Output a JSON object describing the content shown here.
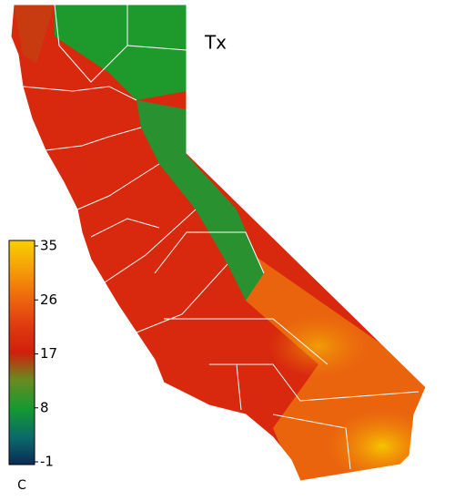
{
  "map": {
    "title": "Tx",
    "colorbar": {
      "lim": [
        -1,
        35
      ],
      "ticks": [
        -1,
        8,
        17,
        26,
        35
      ],
      "unit": "C"
    }
  }
}
